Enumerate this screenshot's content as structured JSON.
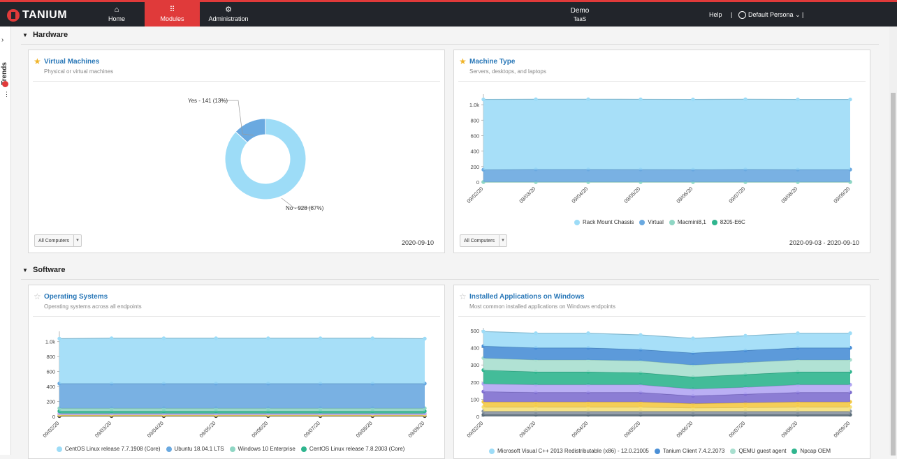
{
  "topbar": {
    "brand": "TANIUM",
    "nav": [
      {
        "label": "Home",
        "icon": "home-icon",
        "glyph": "⌂"
      },
      {
        "label": "Modules",
        "icon": "grid-icon",
        "glyph": "⠿"
      },
      {
        "label": "Administration",
        "icon": "gear-icon",
        "glyph": "⚙"
      }
    ],
    "center_title": "Demo",
    "center_subtitle": "TaaS",
    "help": "Help",
    "separator": "|",
    "persona": "Default Persona",
    "persona_caret": "⌄"
  },
  "sidebar": {
    "trends_label": "Trends",
    "expand_glyph": "›",
    "more_glyph": "⋮"
  },
  "sections": [
    {
      "title": "Hardware",
      "collapse_glyph": "▼"
    },
    {
      "title": "Software",
      "collapse_glyph": "▼"
    }
  ],
  "cards": {
    "virtual_machines": {
      "title": "Virtual Machines",
      "subtitle": "Physical or virtual machines",
      "favorite": true,
      "filter": "All Computers",
      "date": "2020-09-10"
    },
    "machine_type": {
      "title": "Machine Type",
      "subtitle": "Servers, desktops, and laptops",
      "favorite": true,
      "filter": "All Computers",
      "date": "2020-09-03 - 2020-09-10"
    },
    "operating_systems": {
      "title": "Operating Systems",
      "subtitle": "Operating systems across all endpoints",
      "favorite": false
    },
    "installed_apps": {
      "title": "Installed Applications on Windows",
      "subtitle": "Most common installed applications on Windows endpoints",
      "favorite": false
    }
  },
  "colors": {
    "accent": "#e03a3a",
    "title_blue": "#2a78b8",
    "light_blue": "#9ddcf7",
    "blue": "#6aa9e0",
    "teal": "#8fd6c4",
    "green": "#2fb58e"
  },
  "chart_data": [
    {
      "type": "pie",
      "variant": "donut",
      "categories": [
        "Yes",
        "No"
      ],
      "values": [
        141,
        928
      ],
      "labels": [
        "Yes - 141 (13%)",
        "No - 928 (87%)"
      ],
      "colors": [
        "#6aa9e0",
        "#9ddcf7"
      ]
    },
    {
      "type": "area",
      "stacked": true,
      "x": [
        "09/02/20",
        "09/03/20",
        "09/04/20",
        "09/05/20",
        "09/06/20",
        "09/07/20",
        "09/08/20",
        "09/09/20"
      ],
      "ylim": [
        0,
        1100
      ],
      "yticks": [
        "0",
        "200",
        "400",
        "600",
        "800",
        "1.0k"
      ],
      "series": [
        {
          "name": "8205-E6C",
          "color": "#2fb58e",
          "values": [
            1,
            1,
            1,
            1,
            1,
            1,
            1,
            1
          ]
        },
        {
          "name": "Macmini8,1",
          "color": "#8fd6c4",
          "values": [
            1,
            1,
            1,
            1,
            1,
            1,
            1,
            1
          ]
        },
        {
          "name": "Virtual",
          "color": "#6aa9e0",
          "values": [
            158,
            163,
            162,
            161,
            160,
            162,
            160,
            160
          ]
        },
        {
          "name": "Rack Mount Chassis",
          "color": "#9ddcf7",
          "values": [
            908,
            905,
            906,
            906,
            906,
            906,
            906,
            906
          ]
        }
      ],
      "legend_order": [
        "Rack Mount Chassis",
        "Virtual",
        "Macmini8,1",
        "8205-E6C"
      ]
    },
    {
      "type": "area",
      "stacked": true,
      "x": [
        "09/02/20",
        "09/03/20",
        "09/04/20",
        "09/05/20",
        "09/06/20",
        "09/07/20",
        "09/08/20",
        "09/09/20"
      ],
      "ylim": [
        0,
        1100
      ],
      "yticks": [
        "0",
        "200",
        "400",
        "600",
        "800",
        "1.0k"
      ],
      "series": [
        {
          "name": "",
          "color": "#444444",
          "values": [
            5,
            5,
            5,
            5,
            5,
            5,
            5,
            5
          ]
        },
        {
          "name": "",
          "color": "#f2d45c",
          "values": [
            15,
            15,
            15,
            15,
            15,
            15,
            15,
            15
          ]
        },
        {
          "name": "",
          "color": "#b9a7f0",
          "values": [
            20,
            20,
            20,
            20,
            20,
            20,
            20,
            20
          ]
        },
        {
          "name": "CentOS Linux release 7.8.2003 (Core)",
          "color": "#2fb58e",
          "values": [
            30,
            30,
            30,
            30,
            30,
            30,
            30,
            30
          ]
        },
        {
          "name": "Windows 10 Enterprise",
          "color": "#8fd6c4",
          "values": [
            40,
            40,
            40,
            40,
            40,
            40,
            40,
            40
          ]
        },
        {
          "name": "Ubuntu 18.04.1 LTS",
          "color": "#6aa9e0",
          "values": [
            330,
            330,
            330,
            330,
            330,
            330,
            330,
            330
          ]
        },
        {
          "name": "CentOS Linux release 7.7.1908 (Core)",
          "color": "#9ddcf7",
          "values": [
            600,
            605,
            605,
            605,
            605,
            605,
            605,
            600
          ]
        }
      ],
      "legend_order": [
        "CentOS Linux release 7.7.1908 (Core)",
        "Ubuntu 18.04.1 LTS",
        "Windows 10 Enterprise",
        "CentOS Linux release 7.8.2003 (Core)"
      ]
    },
    {
      "type": "area",
      "stacked": true,
      "x": [
        "09/02/20",
        "09/03/20",
        "09/04/20",
        "09/05/20",
        "09/06/20",
        "09/07/20",
        "09/08/20",
        "09/09/20"
      ],
      "ylim": [
        0,
        500
      ],
      "yticks": [
        "0",
        "100",
        "200",
        "300",
        "400",
        "500"
      ],
      "series": [
        {
          "name": "",
          "color": "#5a6c78",
          "values": [
            10,
            10,
            10,
            10,
            10,
            10,
            10,
            10
          ]
        },
        {
          "name": "",
          "color": "#8894a0",
          "values": [
            20,
            20,
            20,
            20,
            20,
            20,
            20,
            20
          ]
        },
        {
          "name": "",
          "color": "#f5e07a",
          "values": [
            25,
            25,
            25,
            25,
            20,
            22,
            25,
            25
          ]
        },
        {
          "name": "",
          "color": "#f4c945",
          "values": [
            30,
            30,
            30,
            30,
            25,
            28,
            30,
            30
          ]
        },
        {
          "name": "",
          "color": "#7f6fcf",
          "values": [
            60,
            55,
            55,
            55,
            45,
            50,
            55,
            55
          ]
        },
        {
          "name": "",
          "color": "#b3a6f3",
          "values": [
            45,
            45,
            45,
            45,
            40,
            40,
            45,
            45
          ]
        },
        {
          "name": "Npcap OEM",
          "color": "#2fb58e",
          "values": [
            80,
            75,
            75,
            70,
            70,
            75,
            75,
            75
          ]
        },
        {
          "name": "QEMU guest agent",
          "color": "#a8dfcf",
          "values": [
            70,
            70,
            70,
            70,
            70,
            70,
            70,
            70
          ]
        },
        {
          "name": "Tanium Client 7.4.2.2073",
          "color": "#4a8fd6",
          "values": [
            70,
            70,
            70,
            65,
            70,
            70,
            70,
            70
          ]
        },
        {
          "name": "Microsoft Visual C++ 2013 Redistributable (x86) - 12.0.21005",
          "color": "#9ddcf7",
          "values": [
            85,
            85,
            85,
            85,
            85,
            85,
            85,
            85
          ]
        }
      ],
      "legend_order": [
        "Microsoft Visual C++ 2013 Redistributable (x86) - 12.0.21005",
        "Tanium Client 7.4.2.2073",
        "QEMU guest agent",
        "Npcap OEM"
      ]
    }
  ]
}
